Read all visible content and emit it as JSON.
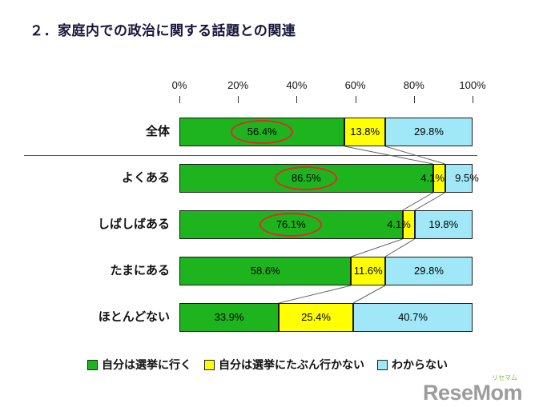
{
  "title": "２．家庭内での政治に関する話題との関連",
  "chart_data": {
    "type": "bar",
    "orientation": "horizontal",
    "stacked": true,
    "title": "２．家庭内での政治に関する話題との関連",
    "categories": [
      "全体",
      "よくある",
      "しばしばある",
      "たまにある",
      "ほとんどない"
    ],
    "series": [
      {
        "name": "自分は選挙に行く",
        "color": "#1eb41e",
        "values": [
          56.4,
          86.5,
          76.1,
          58.6,
          33.9
        ]
      },
      {
        "name": "自分は選挙にたぶん行かない",
        "color": "#ffff00",
        "values": [
          13.8,
          4.1,
          4.1,
          11.6,
          25.4
        ]
      },
      {
        "name": "わからない",
        "color": "#a0e8f8",
        "values": [
          29.8,
          9.5,
          19.8,
          29.8,
          40.7
        ]
      }
    ],
    "x_axis": {
      "ticks": [
        "0%",
        "20%",
        "40%",
        "60%",
        "80%",
        "100%"
      ],
      "range": [
        0,
        100
      ]
    },
    "annotations": {
      "circled": [
        [
          0,
          0
        ],
        [
          1,
          0
        ],
        [
          2,
          0
        ]
      ],
      "circle_color": "#e02a2a"
    },
    "label_dx": [
      [
        0,
        0,
        0
      ],
      [
        0,
        -8,
        10
      ],
      [
        0,
        -12,
        0
      ],
      [
        0,
        0,
        0
      ],
      [
        0,
        0,
        0
      ]
    ],
    "legend_position": "bottom",
    "grid": false,
    "separator_after_category": "全体"
  },
  "logo": {
    "text": "ReseMom",
    "sub": "リセマム"
  }
}
